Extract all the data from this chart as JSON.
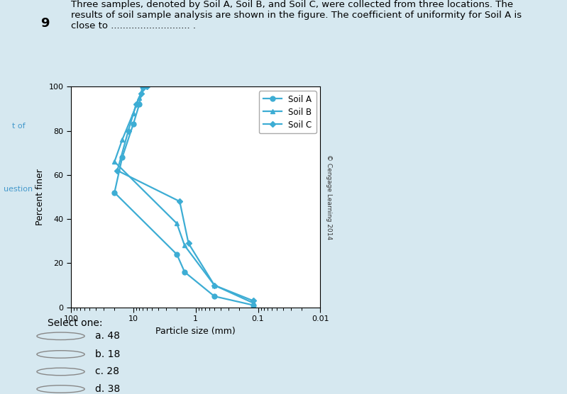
{
  "title_text": "Three samples, denoted by Soil A, Soil B, and Soil C, were collected from three locations. The\nresults of soil sample analysis are shown in the figure. The coefficient of uniformity for Soil A is\nclose to ........................... .",
  "question_number": "9",
  "background_color": "#d6e8f0",
  "plot_bg_color": "#ffffff",
  "ylabel": "Percent finer",
  "xlabel": "Particle size (mm)",
  "copyright": "© Cengage Learning 2014",
  "select_one": "Select one:",
  "options": [
    "a. 48",
    "b. 18",
    "c. 28",
    "d. 38"
  ],
  "soil_A": {
    "x": [
      7.0,
      8.0,
      10.0,
      15.0,
      20.0,
      2.0,
      1.5,
      0.5,
      0.12
    ],
    "y": [
      100,
      92,
      83,
      68,
      52,
      24,
      16,
      5,
      1
    ],
    "color": "#3dadd4",
    "marker": "o",
    "label": "Soil A",
    "linewidth": 1.6,
    "markersize": 5
  },
  "soil_B": {
    "x": [
      7.0,
      8.0,
      10.0,
      15.0,
      20.0,
      2.0,
      1.5,
      0.5,
      0.12
    ],
    "y": [
      100,
      95,
      88,
      76,
      66,
      38,
      28,
      10,
      2
    ],
    "color": "#3dadd4",
    "marker": "^",
    "label": "Soil B",
    "linewidth": 1.6,
    "markersize": 5
  },
  "soil_C": {
    "x": [
      6.0,
      7.5,
      9.0,
      12.0,
      18.0,
      1.8,
      1.3,
      0.5,
      0.12
    ],
    "y": [
      100,
      97,
      92,
      80,
      62,
      48,
      29,
      10,
      3
    ],
    "color": "#3dadd4",
    "marker": "D",
    "label": "Soil C",
    "linewidth": 1.6,
    "markersize": 4
  },
  "xlim_left": 100,
  "xlim_right": 0.01,
  "ylim": [
    0,
    100
  ],
  "yticks": [
    0,
    20,
    40,
    60,
    80,
    100
  ],
  "xticks": [
    100,
    10,
    1,
    0.1,
    0.01
  ],
  "xticklabels": [
    "100",
    "10",
    "1",
    "0.1",
    "0.01"
  ],
  "legend_loc": "upper right",
  "nav_left_texts": [
    "t of",
    "uestion"
  ],
  "nav_left_colors": [
    "#4499cc",
    "#4499cc"
  ]
}
